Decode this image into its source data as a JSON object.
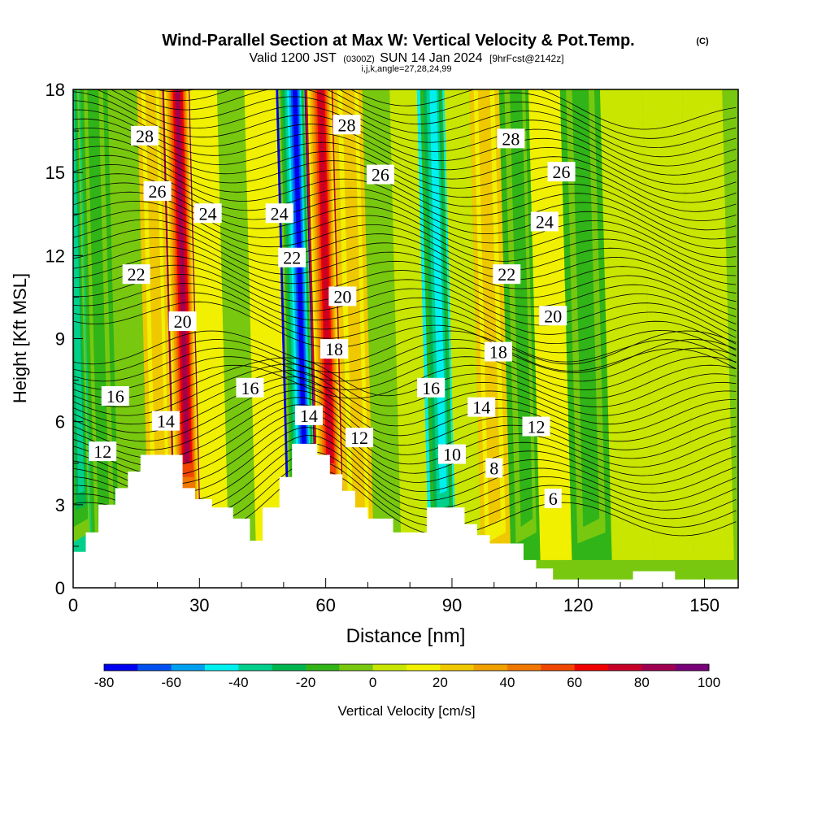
{
  "header": {
    "title": "Wind-Parallel Section at Max W: Vertical Velocity & Pot.Temp.",
    "copyright": "(C)",
    "valid_prefix": "Valid 1200 JST",
    "zulu": "(0300Z)",
    "valid_date": "SUN 14 Jan 2024",
    "forecast": "[9hrFcst@2142z]",
    "section_info": "i,j,k,angle=27,28,24,99"
  },
  "chart_data": {
    "type": "heatmap",
    "title": "Wind-Parallel Section at Max W: Vertical Velocity & Pot.Temp.",
    "xlabel": "Distance [nm]",
    "ylabel": "Height [Kft MSL]",
    "xlim": [
      0,
      158
    ],
    "ylim": [
      0,
      18
    ],
    "xticks": [
      0,
      30,
      60,
      90,
      120,
      150
    ],
    "yticks": [
      0,
      3,
      6,
      9,
      12,
      15,
      18
    ],
    "filled_field": "Vertical Velocity [cm/s]",
    "contour_field": "Potential Temperature",
    "colorbar": {
      "label": "Vertical Velocity [cm/s]",
      "ticks": [
        -80,
        -60,
        -40,
        -20,
        0,
        20,
        40,
        60,
        80,
        100
      ],
      "levels": [
        -80,
        -70,
        -60,
        -50,
        -40,
        -30,
        -20,
        -10,
        0,
        10,
        20,
        30,
        40,
        50,
        60,
        70,
        80,
        90,
        100
      ],
      "colors": [
        "#0000f0",
        "#0050f0",
        "#00a0f0",
        "#00f0f0",
        "#00d08c",
        "#00b450",
        "#30b418",
        "#78c810",
        "#c8e600",
        "#f0f000",
        "#f0c800",
        "#f0a000",
        "#f07800",
        "#f04600",
        "#f00000",
        "#c80028",
        "#a00050",
        "#780078"
      ]
    },
    "terrain_kft": [
      [
        0,
        1.3
      ],
      [
        3,
        1.3
      ],
      [
        3,
        2
      ],
      [
        6,
        2
      ],
      [
        6,
        3
      ],
      [
        10,
        3
      ],
      [
        10,
        3.6
      ],
      [
        13,
        3.6
      ],
      [
        13,
        4.2
      ],
      [
        16,
        4.2
      ],
      [
        16,
        4.8
      ],
      [
        26,
        4.8
      ],
      [
        26,
        3.6
      ],
      [
        29,
        3.6
      ],
      [
        29,
        3.2
      ],
      [
        33,
        3.2
      ],
      [
        33,
        2.9
      ],
      [
        38,
        2.9
      ],
      [
        38,
        2.5
      ],
      [
        42,
        2.5
      ],
      [
        42,
        1.7
      ],
      [
        45,
        1.7
      ],
      [
        45,
        2.9
      ],
      [
        49,
        2.9
      ],
      [
        49,
        4
      ],
      [
        52,
        4
      ],
      [
        52,
        5.2
      ],
      [
        58,
        5.2
      ],
      [
        58,
        4.8
      ],
      [
        61,
        4.8
      ],
      [
        61,
        4.1
      ],
      [
        64,
        4.1
      ],
      [
        64,
        3.5
      ],
      [
        67,
        3.5
      ],
      [
        67,
        2.9
      ],
      [
        70,
        2.9
      ],
      [
        70,
        2.5
      ],
      [
        76,
        2.5
      ],
      [
        76,
        2
      ],
      [
        84,
        2
      ],
      [
        84,
        2.9
      ],
      [
        93,
        2.9
      ],
      [
        93,
        2.3
      ],
      [
        96,
        2.3
      ],
      [
        96,
        1.9
      ],
      [
        99,
        1.9
      ],
      [
        99,
        1.6
      ],
      [
        107,
        1.6
      ],
      [
        107,
        1
      ],
      [
        110,
        1
      ],
      [
        110,
        0.7
      ],
      [
        114,
        0.7
      ],
      [
        114,
        0.3
      ],
      [
        133,
        0.3
      ],
      [
        133,
        0.6
      ],
      [
        143,
        0.6
      ],
      [
        143,
        0.3
      ],
      [
        158,
        0.3
      ]
    ],
    "w_columns": [
      {
        "x": 2,
        "w": -40
      },
      {
        "x": 7,
        "w": -20
      },
      {
        "x": 15,
        "w": -10
      },
      {
        "x": 21,
        "w": 20
      },
      {
        "x": 27,
        "w": 85
      },
      {
        "x": 34,
        "w": 10
      },
      {
        "x": 40,
        "w": -10
      },
      {
        "x": 47,
        "w": 10
      },
      {
        "x": 55,
        "w": -80
      },
      {
        "x": 61,
        "w": 70
      },
      {
        "x": 68,
        "w": 20
      },
      {
        "x": 75,
        "w": -10
      },
      {
        "x": 81,
        "w": 5
      },
      {
        "x": 88,
        "w": -45
      },
      {
        "x": 94,
        "w": 0
      },
      {
        "x": 100,
        "w": 20
      },
      {
        "x": 108,
        "w": -20
      },
      {
        "x": 114,
        "w": 15
      },
      {
        "x": 123,
        "w": -20
      },
      {
        "x": 133,
        "w": 5
      },
      {
        "x": 143,
        "w": 0
      },
      {
        "x": 152,
        "w": 5
      }
    ],
    "theta_contour_labels": [
      {
        "value": "28",
        "x": 17,
        "y": 16.3
      },
      {
        "value": "26",
        "x": 20,
        "y": 14.3
      },
      {
        "value": "24",
        "x": 32,
        "y": 13.5
      },
      {
        "value": "24",
        "x": 49,
        "y": 13.5
      },
      {
        "value": "22",
        "x": 15,
        "y": 11.3
      },
      {
        "value": "22",
        "x": 52,
        "y": 11.9
      },
      {
        "value": "20",
        "x": 26,
        "y": 9.6
      },
      {
        "value": "20",
        "x": 64,
        "y": 10.5
      },
      {
        "value": "18",
        "x": 62,
        "y": 8.6
      },
      {
        "value": "18",
        "x": 101,
        "y": 8.5
      },
      {
        "value": "16",
        "x": 10,
        "y": 6.9
      },
      {
        "value": "16",
        "x": 42,
        "y": 7.2
      },
      {
        "value": "16",
        "x": 85,
        "y": 7.2
      },
      {
        "value": "14",
        "x": 22,
        "y": 6.0
      },
      {
        "value": "14",
        "x": 56,
        "y": 6.2
      },
      {
        "value": "14",
        "x": 97,
        "y": 6.5
      },
      {
        "value": "12",
        "x": 7,
        "y": 4.9
      },
      {
        "value": "12",
        "x": 68,
        "y": 5.4
      },
      {
        "value": "12",
        "x": 110,
        "y": 5.8
      },
      {
        "value": "10",
        "x": 90,
        "y": 4.8
      },
      {
        "value": "8",
        "x": 100,
        "y": 4.3
      },
      {
        "value": "6",
        "x": 114,
        "y": 3.2
      },
      {
        "value": "28",
        "x": 65,
        "y": 16.7
      },
      {
        "value": "26",
        "x": 73,
        "y": 14.9
      },
      {
        "value": "28",
        "x": 104,
        "y": 16.2
      },
      {
        "value": "26",
        "x": 116,
        "y": 15.0
      },
      {
        "value": "24",
        "x": 112,
        "y": 13.2
      },
      {
        "value": "22",
        "x": 103,
        "y": 11.3
      },
      {
        "value": "20",
        "x": 114,
        "y": 9.8
      }
    ]
  }
}
